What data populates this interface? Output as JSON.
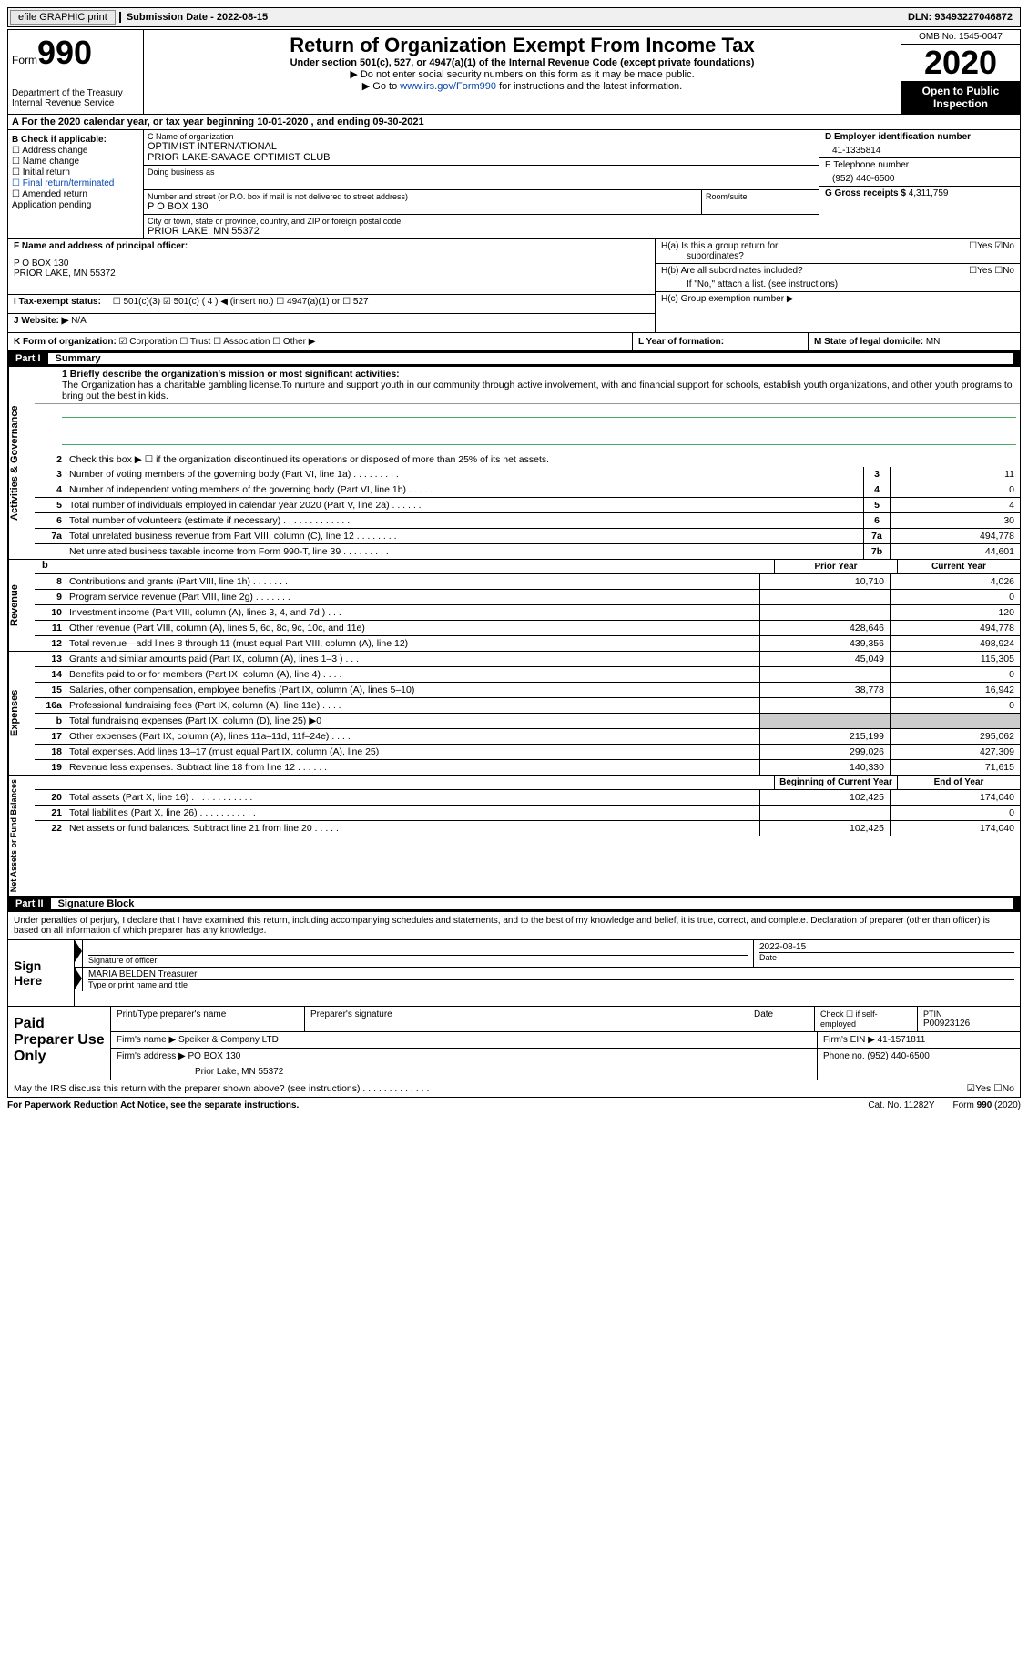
{
  "top": {
    "efile": "efile GRAPHIC print",
    "submission_date_label": "Submission Date - ",
    "submission_date": "2022-08-15",
    "dln_label": "DLN: ",
    "dln": "93493227046872"
  },
  "header": {
    "form_word": "Form",
    "form_num": "990",
    "dept": "Department of the Treasury",
    "irs": "Internal Revenue Service",
    "title": "Return of Organization Exempt From Income Tax",
    "sub": "Under section 501(c), 527, or 4947(a)(1) of the Internal Revenue Code (except private foundations)",
    "note1": "▶ Do not enter social security numbers on this form as it may be made public.",
    "note2_pre": "▶ Go to ",
    "note2_link": "www.irs.gov/Form990",
    "note2_post": " for instructions and the latest information.",
    "omb": "OMB No. 1545-0047",
    "year": "2020",
    "open": "Open to Public Inspection"
  },
  "section_a": "A   For the 2020 calendar year, or tax year beginning 10-01-2020     , and ending 09-30-2021",
  "block_b": {
    "title": "B Check if applicable:",
    "items": [
      "☐ Address change",
      "☐ Name change",
      "☐ Initial return",
      "☐ Final return/terminated",
      "☐ Amended return",
      "Application pending"
    ]
  },
  "block_c": {
    "name_label": "C Name of organization",
    "name1": "OPTIMIST INTERNATIONAL",
    "name2": "PRIOR LAKE-SAVAGE OPTIMIST CLUB",
    "dba": "Doing business as",
    "street_label": "Number and street (or P.O. box if mail is not delivered to street address)",
    "street": "P O BOX 130",
    "room_label": "Room/suite",
    "city_label": "City or town, state or province, country, and ZIP or foreign postal code",
    "city": "PRIOR LAKE, MN  55372"
  },
  "block_d": {
    "label": "D Employer identification number",
    "val": "41-1335814"
  },
  "block_e": {
    "label": "E Telephone number",
    "val": "(952) 440-6500"
  },
  "block_g": {
    "label": "G Gross receipts $ ",
    "val": "4,311,759"
  },
  "f": {
    "label": "F Name and address of principal officer:",
    "l1": "P O BOX 130",
    "l2": "PRIOR LAKE, MN  55372"
  },
  "h": {
    "ha": "H(a)  Is this a group return for",
    "ha2": "subordinates?",
    "hb": "H(b)  Are all subordinates included?",
    "h_note": "If \"No,\" attach a list. (see instructions)",
    "hc": "H(c)  Group exemption number ▶",
    "yes": "Yes",
    "no": "No"
  },
  "i": {
    "label": "I    Tax-exempt status:",
    "opts": "☐  501(c)(3)    ☑   501(c) ( 4 ) ◀ (insert no.)     ☐  4947(a)(1) or   ☐  527"
  },
  "j": {
    "label": "J    Website: ▶  ",
    "val": "N/A"
  },
  "k": {
    "label": "K Form of organization:  ",
    "opts": "☑  Corporation  ☐  Trust  ☐  Association  ☐  Other ▶"
  },
  "l": {
    "label": "L Year of formation:",
    "val": ""
  },
  "m": {
    "label": "M State of legal domicile: ",
    "val": "MN"
  },
  "part1": {
    "num": "Part I",
    "title": "Summary",
    "mission_label": "1  Briefly describe the organization's mission or most significant activities:",
    "mission": "The Organization has a charitable gambling license.To nurture and support youth in our community through active involvement, with and financial support for schools, establish youth organizations, and other youth programs to bring out the best in kids.",
    "line2": "Check this box ▶ ☐  if the organization discontinued its operations or disposed of more than 25% of its net assets.",
    "vtab1": "Activities & Governance",
    "vtab2": "Revenue",
    "vtab3": "Expenses",
    "vtab4": "Net Assets or Fund Balances",
    "lines_gov": [
      {
        "n": "3",
        "d": "Number of voting members of the governing body (Part VI, line 1a)  .   .   .   .   .   .   .   .   .",
        "b": "3",
        "v": "11"
      },
      {
        "n": "4",
        "d": "Number of independent voting members of the governing body (Part VI, line 1b)   .   .   .   .   .",
        "b": "4",
        "v": "0"
      },
      {
        "n": "5",
        "d": "Total number of individuals employed in calendar year 2020 (Part V, line 2a)  .   .   .   .   .   .",
        "b": "5",
        "v": "4"
      },
      {
        "n": "6",
        "d": "Total number of volunteers (estimate if necessary)   .   .   .   .   .   .   .   .   .   .   .   .   .",
        "b": "6",
        "v": "30"
      },
      {
        "n": "7a",
        "d": "Total unrelated business revenue from Part VIII, column (C), line 12   .   .   .   .   .   .   .   .",
        "b": "7a",
        "v": "494,778"
      },
      {
        "n": "",
        "d": "Net unrelated business taxable income from Form 990-T, line 39   .   .   .   .   .   .   .   .   .",
        "b": "7b",
        "v": "44,601"
      }
    ],
    "prior_year": "Prior Year",
    "current_year": "Current Year",
    "lines_rev": [
      {
        "n": "8",
        "d": "Contributions and grants (Part VIII, line 1h)   .   .   .   .   .   .   .",
        "py": "10,710",
        "cy": "4,026"
      },
      {
        "n": "9",
        "d": "Program service revenue (Part VIII, line 2g)   .   .   .   .   .   .   .",
        "py": "",
        "cy": "0"
      },
      {
        "n": "10",
        "d": "Investment income (Part VIII, column (A), lines 3, 4, and 7d )   .   .   .",
        "py": "",
        "cy": "120"
      },
      {
        "n": "11",
        "d": "Other revenue (Part VIII, column (A), lines 5, 6d, 8c, 9c, 10c, and 11e)",
        "py": "428,646",
        "cy": "494,778"
      },
      {
        "n": "12",
        "d": "Total revenue—add lines 8 through 11 (must equal Part VIII, column (A), line 12)",
        "py": "439,356",
        "cy": "498,924"
      }
    ],
    "lines_exp": [
      {
        "n": "13",
        "d": "Grants and similar amounts paid (Part IX, column (A), lines 1–3 )   .   .   .",
        "py": "45,049",
        "cy": "115,305"
      },
      {
        "n": "14",
        "d": "Benefits paid to or for members (Part IX, column (A), line 4)   .   .   .   .",
        "py": "",
        "cy": "0"
      },
      {
        "n": "15",
        "d": "Salaries, other compensation, employee benefits (Part IX, column (A), lines 5–10)",
        "py": "38,778",
        "cy": "16,942"
      },
      {
        "n": "16a",
        "d": "Professional fundraising fees (Part IX, column (A), line 11e)   .   .   .   .",
        "py": "",
        "cy": "0"
      },
      {
        "n": "b",
        "d": "Total fundraising expenses (Part IX, column (D), line 25) ▶0",
        "py": "shade",
        "cy": "shade"
      },
      {
        "n": "17",
        "d": "Other expenses (Part IX, column (A), lines 11a–11d, 11f–24e)   .   .   .   .",
        "py": "215,199",
        "cy": "295,062"
      },
      {
        "n": "18",
        "d": "Total expenses. Add lines 13–17 (must equal Part IX, column (A), line 25)",
        "py": "299,026",
        "cy": "427,309"
      },
      {
        "n": "19",
        "d": "Revenue less expenses. Subtract line 18 from line 12   .   .   .   .   .   .",
        "py": "140,330",
        "cy": "71,615"
      }
    ],
    "beg_year": "Beginning of Current Year",
    "end_year": "End of Year",
    "lines_net": [
      {
        "n": "20",
        "d": "Total assets (Part X, line 16)   .   .   .   .   .   .   .   .   .   .   .   .",
        "py": "102,425",
        "cy": "174,040"
      },
      {
        "n": "21",
        "d": "Total liabilities (Part X, line 26)   .   .   .   .   .   .   .   .   .   .   .",
        "py": "",
        "cy": "0"
      },
      {
        "n": "22",
        "d": "Net assets or fund balances. Subtract line 21 from line 20   .   .   .   .   .",
        "py": "102,425",
        "cy": "174,040"
      }
    ]
  },
  "part2": {
    "num": "Part II",
    "title": "Signature Block",
    "declaration": "Under penalties of perjury, I declare that I have examined this return, including accompanying schedules and statements, and to the best of my knowledge and belief, it is true, correct, and complete. Declaration of preparer (other than officer) is based on all information of which preparer has any knowledge.",
    "sign_here": "Sign Here",
    "sig_officer": "Signature of officer",
    "sig_date": "2022-08-15",
    "date_label": "Date",
    "officer_name": "MARIA BELDEN  Treasurer",
    "type_name": "Type or print name and title"
  },
  "paid": {
    "label": "Paid Preparer Use Only",
    "print_type": "Print/Type preparer's name",
    "prep_sig": "Preparer's signature",
    "date": "Date",
    "check_self": "Check ☐  if self-employed",
    "ptin_label": "PTIN",
    "ptin": "P00923126",
    "firm_name_label": "Firm's name    ▶ ",
    "firm_name": "Speiker & Company LTD",
    "firm_ein_label": "Firm's EIN ▶ ",
    "firm_ein": "41-1571811",
    "firm_addr_label": "Firm's address ▶ ",
    "firm_addr1": "PO BOX 130",
    "firm_addr2": "Prior Lake, MN  55372",
    "phone_label": "Phone no. ",
    "phone": "(952) 440-6500"
  },
  "may_irs": {
    "text": "May the IRS discuss this return with the preparer shown above? (see instructions)   .   .   .   .   .   .   .   .   .   .   .   .   .",
    "yes": "Yes",
    "no": "No"
  },
  "footer": {
    "left": "For Paperwork Reduction Act Notice, see the separate instructions.",
    "mid": "Cat. No. 11282Y",
    "right": "Form 990 (2020)"
  }
}
